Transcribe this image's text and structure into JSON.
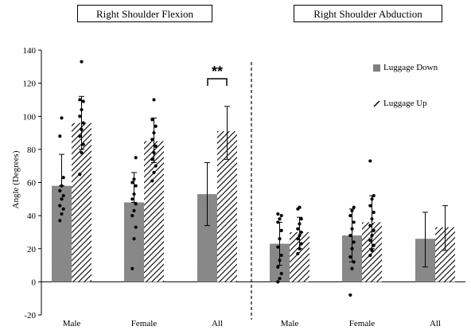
{
  "chart_data": {
    "type": "bar",
    "ylabel": "Angle (Degrees)",
    "ylim": [
      -20,
      140
    ],
    "yticks": [
      -20,
      0,
      20,
      40,
      60,
      80,
      100,
      120,
      140
    ],
    "panels": [
      {
        "title": "Right Shoulder Flexion",
        "categories": [
          "Male",
          "Female",
          "All"
        ],
        "series": [
          {
            "name": "Luggage Down",
            "values": [
              58,
              48,
              53
            ],
            "error": [
              [
                58,
                77
              ],
              [
                48,
                66
              ],
              [
                34,
                72
              ]
            ]
          },
          {
            "name": "Luggage Up",
            "values": [
              96,
              85,
              91
            ],
            "error": [
              [
                80,
                112
              ],
              [
                72,
                99
              ],
              [
                74,
                106
              ]
            ]
          }
        ],
        "points": [
          [
            [
              37,
              41,
              44,
              46,
              50,
              52,
              55,
              58,
              63,
              88,
              99
            ],
            [
              65,
              78,
              83,
              88,
              92,
              96,
              100,
              104,
              109,
              110,
              133
            ]
          ],
          [
            [
              8,
              26,
              33,
              40,
              43,
              47,
              50,
              53,
              58,
              60,
              62,
              75
            ],
            [
              61,
              66,
              70,
              74,
              78,
              82,
              86,
              90,
              94,
              98,
              110
            ]
          ],
          [
            [],
            []
          ]
        ],
        "annotation": "**"
      },
      {
        "title": "Right Shoulder Abduction",
        "categories": [
          "Male",
          "Female",
          "All"
        ],
        "series": [
          {
            "name": "Luggage Down",
            "values": [
              23,
              28,
              26
            ],
            "error": [
              [
                10,
                36
              ],
              [
                12,
                44
              ],
              [
                9,
                42
              ]
            ]
          },
          {
            "name": "Luggage Up",
            "values": [
              30,
              36,
              33
            ],
            "error": [
              [
                20,
                39
              ],
              [
                20,
                52
              ],
              [
                19,
                46
              ]
            ]
          }
        ],
        "points": [
          [
            [
              0,
              2,
              5,
              9,
              13,
              16,
              21,
              26,
              31,
              36,
              38,
              40,
              41
            ],
            [
              17,
              20,
              23,
              26,
              28,
              30,
              32,
              35,
              38,
              44,
              45
            ]
          ],
          [
            [
              -8,
              8,
              12,
              15,
              20,
              24,
              28,
              32,
              36,
              40,
              43,
              45
            ],
            [
              16,
              19,
              22,
              25,
              28,
              31,
              34,
              38,
              42,
              46,
              50,
              52,
              73
            ]
          ],
          [
            [],
            []
          ]
        ]
      }
    ],
    "legend": [
      "Luggage Down",
      "Luggage Up"
    ],
    "colors": {
      "down": "#808080",
      "up_hatch": "#000000"
    }
  }
}
